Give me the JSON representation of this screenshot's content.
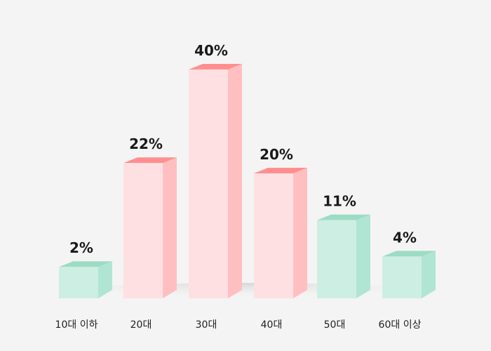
{
  "chart_data": {
    "type": "bar",
    "style": "3d",
    "categories": [
      "10대 이하",
      "20대",
      "30대",
      "40대",
      "50대",
      "60대 이상"
    ],
    "values": [
      2,
      22,
      40,
      20,
      11,
      4
    ],
    "data_labels": [
      "2%",
      "22%",
      "40%",
      "20%",
      "11%",
      "4%"
    ],
    "highlight": [
      false,
      true,
      true,
      true,
      false,
      false
    ],
    "unit": "%",
    "grid": false,
    "colors": {
      "normal": {
        "front": "#cdeee2",
        "side": "#b0e5d3",
        "top": "#9ddcc4"
      },
      "highlight": {
        "front": "#ffe0e2",
        "side": "#ffbfc0",
        "top": "#ff8f8f"
      }
    }
  }
}
